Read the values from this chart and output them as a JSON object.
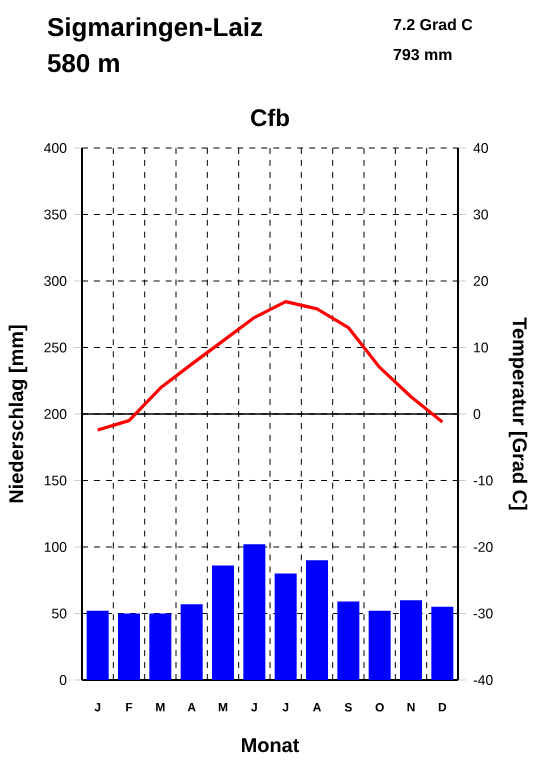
{
  "chart_data": {
    "type": "bar",
    "title": "Sigmaringen-Laiz",
    "subtitle": "580 m",
    "annotations": [
      "7.2 Grad C",
      "793 mm",
      "Cfb"
    ],
    "xlabel": "Monat",
    "ylabel": "Niederschlag [mm]",
    "y2label": "Temperatur [Grad C]",
    "categories": [
      "J",
      "F",
      "M",
      "A",
      "M",
      "J",
      "J",
      "A",
      "S",
      "O",
      "N",
      "D"
    ],
    "series": [
      {
        "color": "#0000ff",
        "values": [
          52,
          50,
          50,
          57,
          86,
          102,
          80,
          90,
          59,
          52,
          60,
          55
        ]
      },
      {
        "type": "line",
        "axis": "y2",
        "color": "#ff0000",
        "values": [
          -2.4,
          -1.0,
          3.9,
          7.5,
          11.0,
          14.5,
          16.9,
          15.8,
          13.0,
          7.0,
          2.6,
          -1.2
        ]
      }
    ],
    "ylim": [
      0,
      400
    ],
    "yticks": [
      0,
      50,
      100,
      150,
      200,
      250,
      300,
      350,
      400
    ],
    "y2lim": [
      -40,
      40
    ],
    "y2ticks": [
      -40,
      -30,
      -20,
      -10,
      0,
      10,
      20,
      30,
      40
    ],
    "ref_lines": [
      {
        "axis": "y2",
        "value": 0
      }
    ],
    "grid": true
  }
}
